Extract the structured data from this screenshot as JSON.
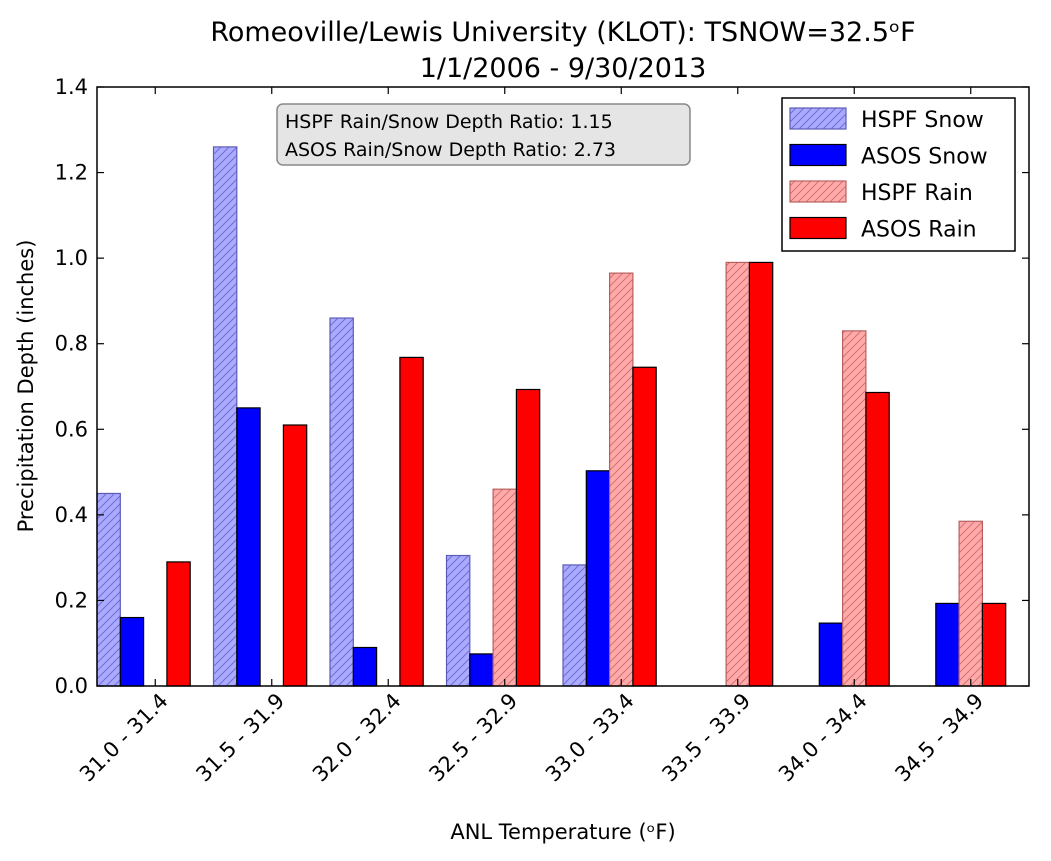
{
  "chart_data": {
    "type": "bar",
    "title": "Romeoville/Lewis University (KLOT): TSNOW=32.5ᵒF",
    "subtitle": "1/1/2006 - 9/30/2013",
    "xlabel": "ANL Temperature (ᵒF)",
    "ylabel": "Precipitation Depth (inches)",
    "ylim": [
      0,
      1.4
    ],
    "yticks": [
      "0.0",
      "0.2",
      "0.4",
      "0.6",
      "0.8",
      "1.0",
      "1.2",
      "1.4"
    ],
    "categories": [
      "31.0 - 31.4",
      "31.5 - 31.9",
      "32.0 - 32.4",
      "32.5 - 32.9",
      "33.0 - 33.4",
      "33.5 - 33.9",
      "34.0 - 34.4",
      "34.5 - 34.9"
    ],
    "series": [
      {
        "name": "HSPF Snow",
        "color": "#aaaaff",
        "hatch": true,
        "values": [
          0.45,
          1.26,
          0.86,
          0.305,
          0.283,
          0,
          0,
          0
        ]
      },
      {
        "name": "ASOS Snow",
        "color": "#0000ff",
        "hatch": false,
        "values": [
          0.16,
          0.65,
          0.09,
          0.075,
          0.503,
          0,
          0.147,
          0.193
        ]
      },
      {
        "name": "HSPF Rain",
        "color": "#ffaaaa",
        "hatch": true,
        "values": [
          0,
          0,
          0,
          0.46,
          0.965,
          0.99,
          0.83,
          0.385
        ]
      },
      {
        "name": "ASOS Rain",
        "color": "#ff0000",
        "hatch": false,
        "values": [
          0.29,
          0.61,
          0.768,
          0.693,
          0.745,
          0.99,
          0.686,
          0.193
        ]
      }
    ],
    "annotation": {
      "line1": "HSPF Rain/Snow Depth Ratio: 1.15",
      "line2": "ASOS Rain/Snow Depth Ratio: 2.73"
    },
    "legend_position": "top-right",
    "grid": false
  }
}
